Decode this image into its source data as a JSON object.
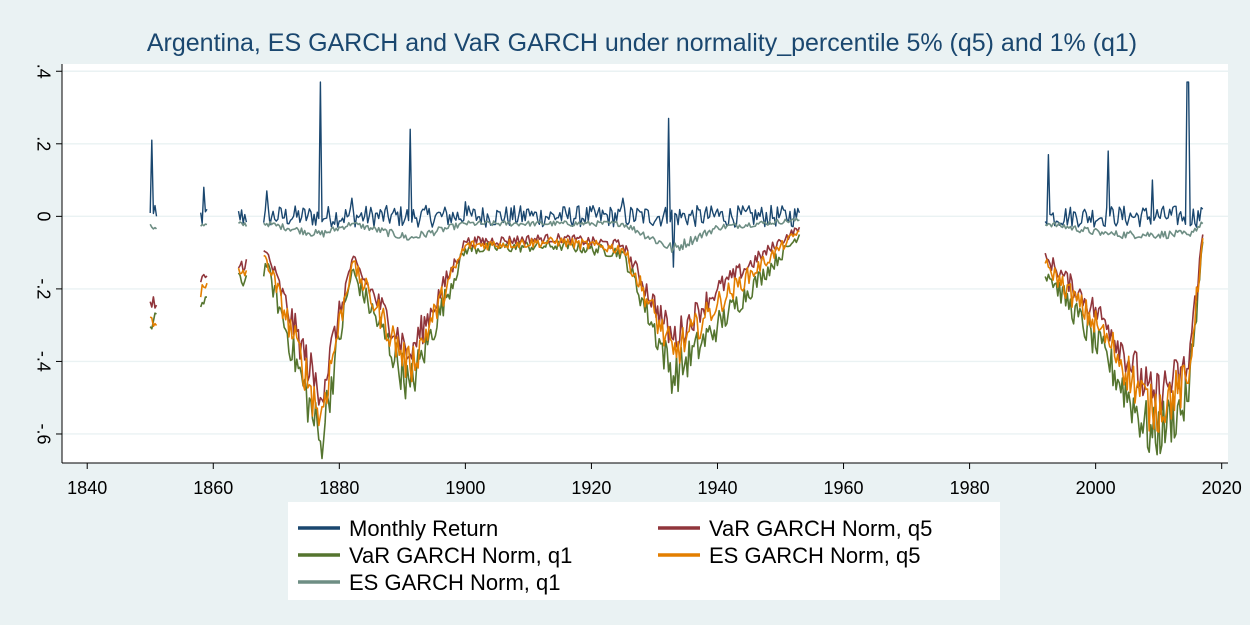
{
  "chart_data": {
    "type": "line",
    "title": "Argentina, ES GARCH and VaR GARCH under normality_percentile 5% (q5) and 1% (q1)",
    "xlabel": "",
    "ylabel": "",
    "xlim": [
      1836,
      2021
    ],
    "ylim": [
      -0.68,
      0.42
    ],
    "x_ticks": [
      1840,
      1860,
      1880,
      1900,
      1920,
      1940,
      1960,
      1980,
      2000,
      2020
    ],
    "y_ticks": [
      -0.6,
      -0.4,
      -0.2,
      0,
      0.2,
      0.4
    ],
    "y_tick_labels": [
      "-.6",
      "-.4",
      "-.2",
      "0",
      ".2",
      ".4"
    ],
    "grid": "horizontal",
    "legend_position": "bottom",
    "data_coverage_years": [
      [
        1850.0,
        1851.0
      ],
      [
        1858.0,
        1859.0
      ],
      [
        1864.0,
        1865.3
      ],
      [
        1868.0,
        1953.0
      ],
      [
        1992.0,
        2017.0
      ]
    ],
    "series": [
      {
        "name": "Monthly Return",
        "color": "#1a476f",
        "x": [
          1850.2,
          1851.0,
          1858.5,
          1868.5,
          1877.0,
          1882.0,
          1891.2,
          1900.0,
          1910.0,
          1915.0,
          1925.0,
          1932.2,
          1933.0,
          1940.0,
          1953.0,
          1992.5,
          2002.0,
          2009.0,
          2014.6,
          2017.0
        ],
        "values": [
          0.21,
          0.0,
          0.08,
          0.07,
          0.37,
          0.05,
          0.24,
          0.04,
          0.02,
          0.01,
          0.05,
          0.27,
          -0.14,
          0.02,
          0.01,
          0.17,
          0.18,
          0.1,
          0.37,
          0.02
        ]
      },
      {
        "name": "VaR GARCH Norm, q5",
        "color": "#90353b",
        "x": [
          1850.2,
          1868.5,
          1877.0,
          1882.0,
          1891.2,
          1900.0,
          1915.0,
          1925.0,
          1933.0,
          1940.0,
          1953.0,
          1992.5,
          2002.0,
          2009.0,
          2014.6,
          2017.0
        ],
        "values": [
          -0.25,
          -0.1,
          -0.5,
          -0.12,
          -0.38,
          -0.07,
          -0.06,
          -0.08,
          -0.34,
          -0.2,
          -0.03,
          -0.12,
          -0.3,
          -0.5,
          -0.42,
          -0.05
        ]
      },
      {
        "name": "VaR GARCH Norm, q1",
        "color": "#55752f",
        "x": [
          1850.2,
          1868.5,
          1877.0,
          1882.0,
          1891.2,
          1900.0,
          1915.0,
          1925.0,
          1933.0,
          1940.0,
          1953.0,
          1992.5,
          2002.0,
          2009.0,
          2014.6,
          2017.0
        ],
        "values": [
          -0.31,
          -0.14,
          -0.62,
          -0.15,
          -0.47,
          -0.09,
          -0.08,
          -0.1,
          -0.44,
          -0.3,
          -0.05,
          -0.16,
          -0.4,
          -0.61,
          -0.51,
          -0.07
        ]
      },
      {
        "name": "ES GARCH Norm, q5",
        "color": "#e37e00",
        "x": [
          1850.2,
          1868.5,
          1877.0,
          1882.0,
          1891.2,
          1900.0,
          1915.0,
          1925.0,
          1933.0,
          1940.0,
          1953.0,
          1992.5,
          2002.0,
          2009.0,
          2014.6,
          2017.0
        ],
        "values": [
          -0.28,
          -0.12,
          -0.55,
          -0.13,
          -0.42,
          -0.08,
          -0.07,
          -0.09,
          -0.38,
          -0.24,
          -0.04,
          -0.14,
          -0.34,
          -0.54,
          -0.46,
          -0.06
        ]
      },
      {
        "name": "ES GARCH Norm, q1",
        "color": "#6e8e84",
        "x": [
          1850.2,
          1868.5,
          1877.0,
          1882.0,
          1891.2,
          1900.0,
          1915.0,
          1925.0,
          1933.0,
          1940.0,
          1953.0,
          1992.5,
          2002.0,
          2009.0,
          2014.6,
          2017.0
        ],
        "values": [
          -0.03,
          -0.02,
          -0.05,
          -0.02,
          -0.06,
          -0.02,
          -0.02,
          -0.02,
          -0.09,
          -0.03,
          -0.01,
          -0.02,
          -0.05,
          -0.05,
          -0.05,
          -0.02
        ]
      }
    ]
  }
}
